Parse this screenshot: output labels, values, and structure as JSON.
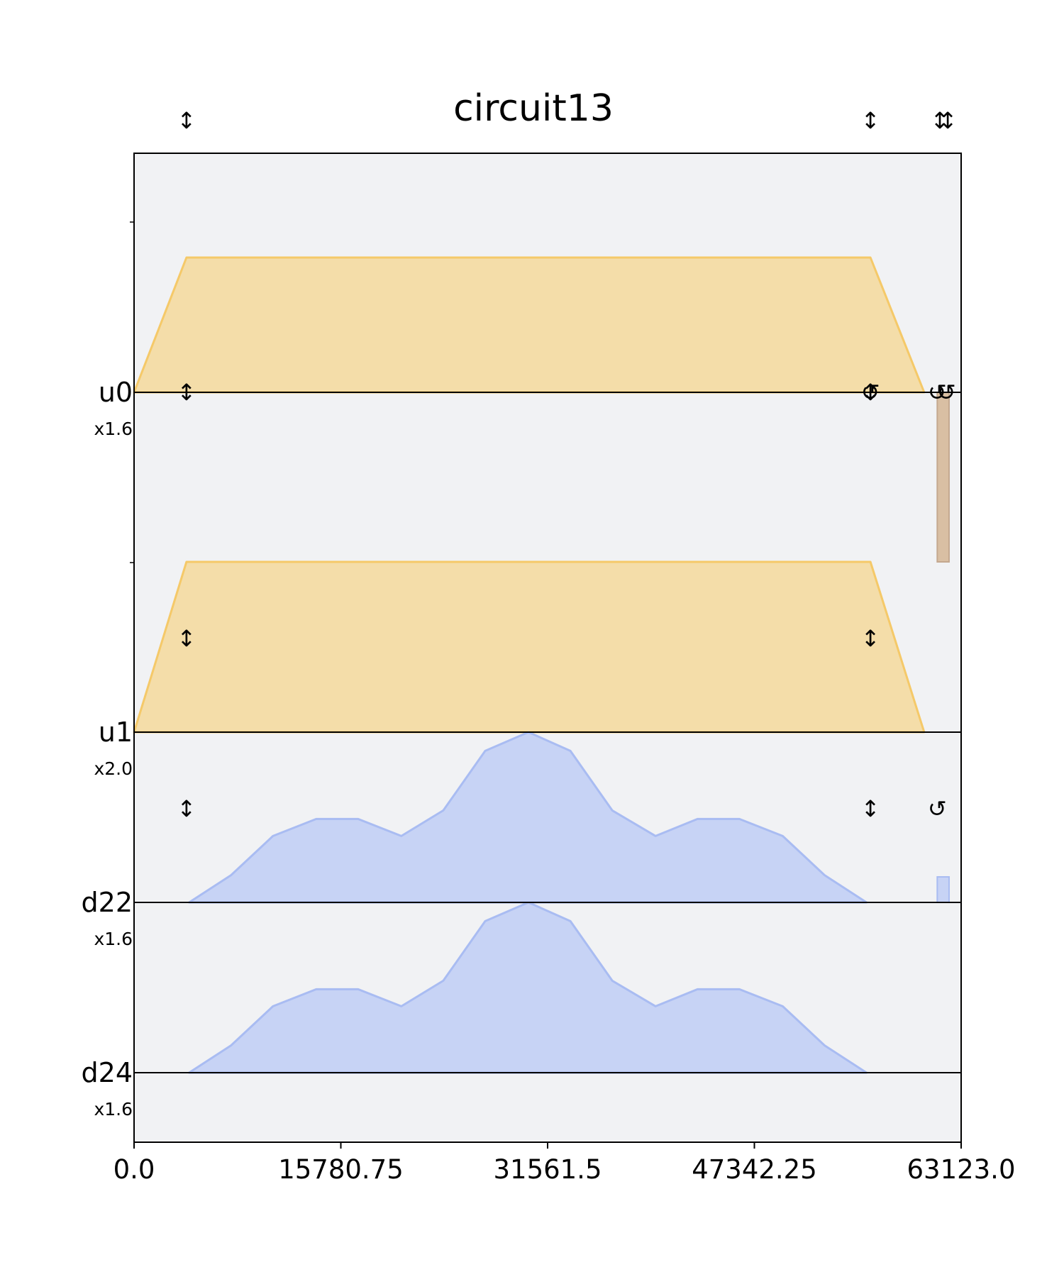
{
  "chart_data": {
    "type": "area",
    "title": "circuit13",
    "xlim": [
      0,
      63123
    ],
    "x_ticks": [
      "0.0",
      "15780.75",
      "31561.5",
      "47342.25",
      "63123.0"
    ],
    "x_tick_values": [
      0,
      15780.75,
      31561.5,
      47342.25,
      63123
    ],
    "colors": {
      "background": "#f1f2f4",
      "control_fill": "#f4dda9",
      "control_edge": "#f5c969",
      "drive_fill": "#c7d3f5",
      "drive_edge": "#a9bcf2",
      "acquire_fill": "#d9bfa3",
      "acquire_edge": "#c4a88f"
    },
    "channels": [
      {
        "name": "u0",
        "scale": "x1.6",
        "kind": "control",
        "envelope": {
          "x": [
            0,
            4000,
            56200,
            60300
          ],
          "y": [
            0,
            1,
            1,
            0
          ]
        }
      },
      {
        "name": "u1",
        "scale": "x2.0",
        "kind": "control",
        "envelope": {
          "x": [
            0,
            4000,
            56200,
            60300
          ],
          "y": [
            0,
            1,
            1,
            0
          ]
        }
      },
      {
        "name": "d22",
        "scale": "x1.6",
        "kind": "drive",
        "envelope": {
          "x": [
            4200,
            7400,
            10600,
            13900,
            17100,
            20400,
            23600,
            26800,
            30100,
            33300,
            36500,
            39800,
            43000,
            46200,
            49500,
            52700,
            55900
          ],
          "y": [
            0,
            0.16,
            0.39,
            0.49,
            0.49,
            0.39,
            0.54,
            0.89,
            1,
            0.89,
            0.54,
            0.39,
            0.49,
            0.49,
            0.39,
            0.16,
            0
          ]
        },
        "extra_pulse": {
          "x": [
            61300,
            62200
          ],
          "y": 0.15
        }
      },
      {
        "name": "d24",
        "scale": "x1.6",
        "kind": "drive",
        "envelope": {
          "x": [
            4200,
            7400,
            10600,
            13900,
            17100,
            20400,
            23600,
            26800,
            30100,
            33300,
            36500,
            39800,
            43000,
            46200,
            49500,
            52700,
            55900
          ],
          "y": [
            0,
            0.16,
            0.39,
            0.49,
            0.49,
            0.39,
            0.54,
            0.89,
            1,
            0.89,
            0.54,
            0.39,
            0.49,
            0.49,
            0.39,
            0.16,
            0
          ]
        }
      }
    ],
    "acquire_bar": {
      "x": [
        61300,
        62200
      ],
      "from": "u0",
      "to_level": "u1-top"
    },
    "markers": [
      {
        "x": 4000,
        "row": "top",
        "icon": "double-arrow-icon"
      },
      {
        "x": 56200,
        "row": "top",
        "icon": "double-arrow-icon"
      },
      {
        "x": 61500,
        "row": "top",
        "icon": "double-arrow-icon"
      },
      {
        "x": 62100,
        "row": "top",
        "icon": "double-arrow-icon"
      },
      {
        "x": 4000,
        "row": "u0",
        "icon": "double-arrow-icon"
      },
      {
        "x": 56200,
        "row": "u0",
        "icon": "double-arrow-icon"
      },
      {
        "x": 56200,
        "row": "u0",
        "icon": "rotate-icon"
      },
      {
        "x": 61300,
        "row": "u0",
        "icon": "rotate-icon"
      },
      {
        "x": 62000,
        "row": "u0",
        "icon": "rotate-icon"
      },
      {
        "x": 4000,
        "row": "u1",
        "icon": "double-arrow-icon"
      },
      {
        "x": 56200,
        "row": "u1",
        "icon": "double-arrow-icon"
      },
      {
        "x": 4000,
        "row": "d22",
        "icon": "double-arrow-icon"
      },
      {
        "x": 56200,
        "row": "d22",
        "icon": "double-arrow-icon"
      },
      {
        "x": 61300,
        "row": "d22",
        "icon": "rotate-icon"
      }
    ],
    "grid": false,
    "legend": "none"
  }
}
